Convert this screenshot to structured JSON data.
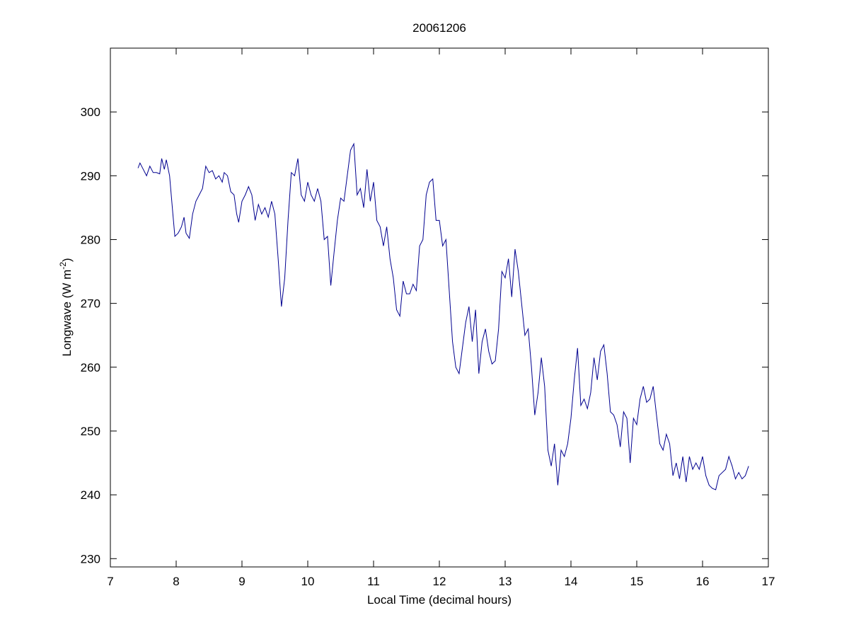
{
  "chart_data": {
    "type": "line",
    "title": "20061206",
    "xlabel": "Local Time (decimal hours)",
    "ylabel": [
      "Longwave (W m",
      "-2",
      ")"
    ],
    "xlim": [
      7,
      17
    ],
    "ylim": [
      228.7,
      310
    ],
    "xticks": [
      7,
      8,
      9,
      10,
      11,
      12,
      13,
      14,
      15,
      16,
      17
    ],
    "yticks": [
      230,
      240,
      250,
      260,
      270,
      280,
      290,
      300
    ],
    "grid": false,
    "series": [
      {
        "name": "Longwave",
        "color": "#00008f",
        "x": [
          7.42,
          7.45,
          7.5,
          7.55,
          7.6,
          7.65,
          7.7,
          7.75,
          7.78,
          7.82,
          7.85,
          7.9,
          7.95,
          7.98,
          8.03,
          8.08,
          8.12,
          8.15,
          8.2,
          8.25,
          8.3,
          8.35,
          8.4,
          8.45,
          8.5,
          8.55,
          8.6,
          8.65,
          8.7,
          8.73,
          8.78,
          8.83,
          8.88,
          8.92,
          8.95,
          9.0,
          9.05,
          9.1,
          9.15,
          9.2,
          9.25,
          9.3,
          9.35,
          9.4,
          9.45,
          9.5,
          9.55,
          9.6,
          9.65,
          9.7,
          9.75,
          9.8,
          9.85,
          9.9,
          9.95,
          10.0,
          10.05,
          10.1,
          10.15,
          10.2,
          10.25,
          10.3,
          10.35,
          10.4,
          10.45,
          10.5,
          10.55,
          10.6,
          10.65,
          10.7,
          10.75,
          10.8,
          10.85,
          10.9,
          10.95,
          11.0,
          11.05,
          11.1,
          11.15,
          11.2,
          11.25,
          11.3,
          11.35,
          11.4,
          11.45,
          11.5,
          11.55,
          11.6,
          11.65,
          11.7,
          11.75,
          11.8,
          11.85,
          11.9,
          11.95,
          12.0,
          12.05,
          12.1,
          12.15,
          12.2,
          12.25,
          12.3,
          12.35,
          12.4,
          12.45,
          12.5,
          12.55,
          12.6,
          12.65,
          12.7,
          12.75,
          12.8,
          12.85,
          12.9,
          12.95,
          13.0,
          13.05,
          13.1,
          13.15,
          13.2,
          13.25,
          13.3,
          13.35,
          13.4,
          13.45,
          13.5,
          13.55,
          13.6,
          13.65,
          13.7,
          13.75,
          13.8,
          13.85,
          13.9,
          13.95,
          14.0,
          14.05,
          14.1,
          14.15,
          14.2,
          14.25,
          14.3,
          14.35,
          14.4,
          14.45,
          14.5,
          14.55,
          14.6,
          14.65,
          14.7,
          14.75,
          14.8,
          14.85,
          14.9,
          14.95,
          15.0,
          15.05,
          15.1,
          15.15,
          15.2,
          15.25,
          15.3,
          15.35,
          15.4,
          15.45,
          15.5,
          15.55,
          15.6,
          15.65,
          15.7,
          15.75,
          15.8,
          15.85,
          15.9,
          15.95,
          16.0,
          16.05,
          16.1,
          16.15,
          16.2,
          16.25,
          16.3,
          16.35,
          16.4,
          16.45,
          16.5,
          16.55,
          16.6,
          16.65,
          16.7
        ],
        "values": [
          291.2,
          292,
          291,
          290,
          291.5,
          290.5,
          290.5,
          290.3,
          292.7,
          291,
          292.5,
          290,
          284,
          280.5,
          281,
          282,
          283.5,
          281,
          280.2,
          284,
          286,
          287,
          288,
          291.5,
          290.5,
          290.8,
          289.5,
          290,
          289,
          290.5,
          290,
          287.5,
          287,
          284,
          282.7,
          286,
          287,
          288.3,
          287,
          283,
          285.5,
          284,
          285,
          283.5,
          286,
          284,
          277,
          269.5,
          274,
          283,
          290.5,
          290,
          292.7,
          287,
          286,
          289,
          287,
          286,
          288,
          286,
          280,
          280.5,
          272.8,
          278,
          283,
          286.5,
          286,
          290,
          294,
          295,
          287,
          288,
          285,
          291,
          286,
          289,
          283,
          282,
          279,
          282,
          277,
          274,
          269,
          268,
          273.5,
          271.5,
          271.5,
          273,
          272,
          279,
          280,
          287,
          289,
          289.5,
          283,
          283,
          279,
          280,
          272,
          264,
          260,
          259,
          263,
          267,
          269.5,
          264,
          269,
          259,
          264,
          266,
          262.5,
          260.5,
          261,
          266,
          275,
          274,
          277,
          271,
          278.5,
          275,
          270,
          265,
          266,
          260,
          252.5,
          256,
          261.5,
          257,
          247,
          244.5,
          248,
          241.5,
          247,
          246,
          248,
          252,
          258,
          263,
          254,
          255,
          253.5,
          256,
          261.5,
          258,
          262.5,
          263.5,
          259,
          253,
          252.5,
          251,
          247.5,
          253,
          252,
          245,
          252,
          251,
          255,
          257,
          254.5,
          255,
          257,
          252.5,
          248,
          247,
          249.5,
          248,
          243,
          245,
          242.5,
          246,
          242,
          246,
          244,
          245,
          244,
          246,
          243,
          241.5,
          241,
          240.8,
          243,
          243.5,
          244,
          246,
          244.5,
          242.5,
          243.5,
          242.5,
          243,
          244.5
        ]
      }
    ]
  }
}
